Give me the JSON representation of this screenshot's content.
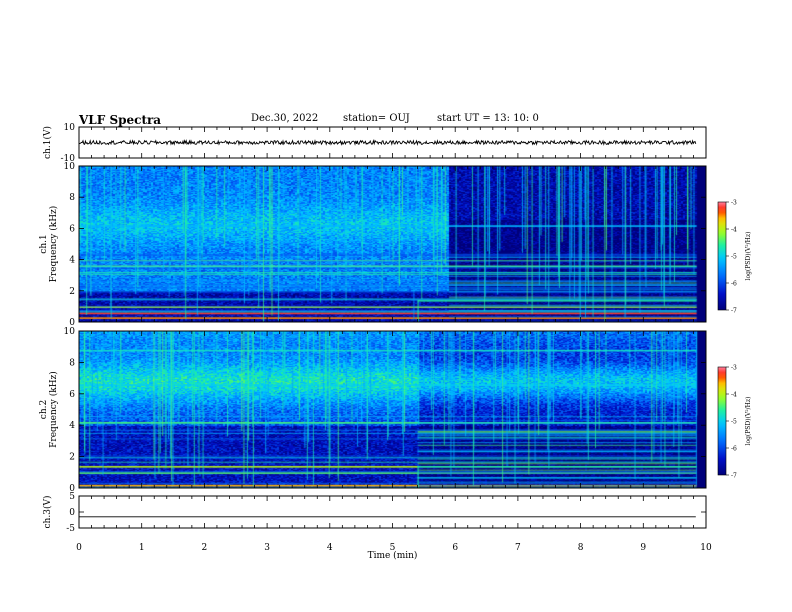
{
  "header": {
    "title": "VLF Spectra",
    "date": "Dec.30, 2022",
    "station": "station= OUJ",
    "start": "start  UT =   13: 10: 0"
  },
  "colors": {
    "trace": "#000000",
    "colormap": [
      "#00007a",
      "#0010c8",
      "#0070ff",
      "#00c8ff",
      "#20f0a0",
      "#a0ff20",
      "#ffd000",
      "#ff2000",
      "#ff80a0"
    ]
  },
  "chart_data": [
    {
      "type": "line",
      "panel": "ch1-waveform",
      "ylabel": "ch.1(V)",
      "ylim": [
        -10,
        10
      ],
      "yticks": [
        "10",
        "-10"
      ],
      "xlim": [
        0,
        10
      ],
      "level": 0,
      "noise_amplitude": 1.2
    },
    {
      "type": "heatmap",
      "panel": "ch1-spectrogram",
      "ylabel": [
        "ch.1",
        "Frequency (kHz)"
      ],
      "xlim": [
        0,
        9.85
      ],
      "ylim": [
        0,
        10
      ],
      "yticks": [
        "0",
        "2",
        "4",
        "6",
        "8",
        "10"
      ],
      "colorbar": {
        "range": [
          -7,
          -3
        ],
        "ticks": [
          "-3",
          "-4",
          "-5",
          "-6",
          "-7"
        ],
        "label": "log(PSD)(V²/Hz)"
      },
      "regime_change_min": 5.9,
      "low_band_step_min": 5.4,
      "bands": [
        {
          "f": 0.3,
          "level": -3.5
        },
        {
          "f": 0.6,
          "level": -3.2
        },
        {
          "f": 1.0,
          "level": -4.0
        },
        {
          "f": 1.5,
          "level": -4.8
        },
        {
          "f": 3.6,
          "level": -5.0
        },
        {
          "f": 6.2,
          "level": -5.2
        }
      ]
    },
    {
      "type": "heatmap",
      "panel": "ch2-spectrogram",
      "ylabel": [
        "ch.2",
        "Frequency (kHz)"
      ],
      "xlim": [
        0,
        9.85
      ],
      "ylim": [
        0,
        10
      ],
      "yticks": [
        "0",
        "2",
        "4",
        "6",
        "8",
        "10"
      ],
      "colorbar": {
        "range": [
          -7,
          -3
        ],
        "ticks": [
          "-3",
          "-4",
          "-5",
          "-6",
          "-7"
        ],
        "label": "log(PSD)(V²/Hz)"
      },
      "regime_change_min": 5.4,
      "low_band_step_min": 5.4,
      "bands": [
        {
          "f": 0.2,
          "level": -3.6
        },
        {
          "f": 1.0,
          "level": -4.4
        },
        {
          "f": 1.4,
          "level": -4.0
        },
        {
          "f": 4.2,
          "level": -4.6
        },
        {
          "f": 6.6,
          "level": -5.0
        },
        {
          "f": 8.8,
          "level": -4.8
        }
      ]
    },
    {
      "type": "line",
      "panel": "ch3-waveform",
      "ylabel": "ch.3(V)",
      "ylim": [
        -5,
        5
      ],
      "yticks": [
        "5",
        "0",
        "-5"
      ],
      "xlim": [
        0,
        10
      ],
      "level": -1.5,
      "noise_amplitude": 0
    }
  ],
  "xaxis": {
    "label": "Time (min)",
    "range": [
      0,
      10
    ],
    "ticks": [
      "0",
      "1",
      "2",
      "3",
      "4",
      "5",
      "6",
      "7",
      "8",
      "9",
      "10"
    ]
  }
}
